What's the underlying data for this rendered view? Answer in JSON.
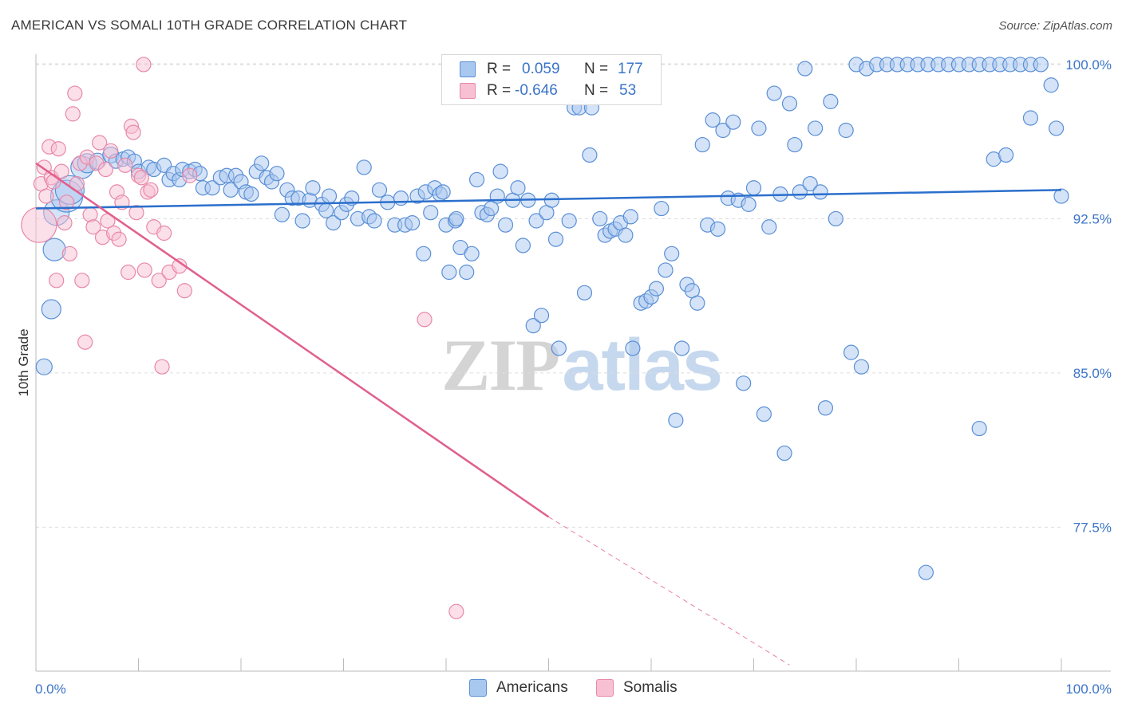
{
  "chart_data": {
    "type": "scatter",
    "title": "AMERICAN VS SOMALI 10TH GRADE CORRELATION CHART",
    "source": "Source: ZipAtlas.com",
    "xlabel": "",
    "ylabel": "10th Grade",
    "xlim": [
      0,
      100
    ],
    "ylim": [
      70.5,
      101.2
    ],
    "x_tick_labels": {
      "left": "0.0%",
      "right": "100.0%"
    },
    "y_ticks": [
      {
        "value": 100.0,
        "label": "100.0%"
      },
      {
        "value": 92.5,
        "label": "92.5%"
      },
      {
        "value": 85.0,
        "label": "85.0%"
      },
      {
        "value": 77.5,
        "label": "77.5%"
      }
    ],
    "grid": "horizontal dashed",
    "colors": {
      "americans_fill": "#a9c8ef",
      "americans_stroke": "#5a8fd6",
      "americans_line": "#2b6fcc",
      "somalis_fill": "#f7c0d3",
      "somalis_stroke": "#e888a8",
      "somalis_line": "#e0608e",
      "accent_text": "#3b74c8"
    },
    "legend": {
      "rows": [
        {
          "r_label": "R = ",
          "r_value": "0.059",
          "n_label": "N = ",
          "n_value": "177"
        },
        {
          "r_label": "R = ",
          "r_value": "-0.646",
          "n_label": "N = ",
          "n_value": "53"
        }
      ]
    },
    "bottom_legend": [
      "Americans",
      "Somalis"
    ],
    "watermark": {
      "zip": "ZIP",
      "atlas": "atlas"
    },
    "series": [
      {
        "name": "Americans",
        "trend": {
          "x": [
            0,
            100
          ],
          "y": [
            93.0,
            93.9
          ]
        },
        "points": [
          [
            0.8,
            85.3,
            10
          ],
          [
            1.5,
            88.1,
            12
          ],
          [
            1.8,
            91.0,
            14
          ],
          [
            2.0,
            92.8,
            16
          ],
          [
            3.0,
            93.6,
            20
          ],
          [
            3.3,
            93.9,
            18
          ],
          [
            4.5,
            95.0,
            14
          ],
          [
            5.0,
            95.2,
            12
          ],
          [
            6.0,
            95.3,
            10
          ],
          [
            7.3,
            95.6,
            10
          ],
          [
            7.8,
            95.3,
            9
          ],
          [
            8.5,
            95.4,
            9
          ],
          [
            9.0,
            95.5,
            9
          ],
          [
            9.6,
            95.3,
            9
          ],
          [
            10.0,
            94.8,
            9
          ],
          [
            11.0,
            95.0,
            9
          ],
          [
            11.5,
            94.9,
            9
          ],
          [
            12.5,
            95.1,
            9
          ],
          [
            13.0,
            94.4,
            9
          ],
          [
            13.4,
            94.7,
            9
          ],
          [
            14.0,
            94.4,
            9
          ],
          [
            14.3,
            94.9,
            9
          ],
          [
            15.0,
            94.8,
            9
          ],
          [
            15.5,
            94.9,
            9
          ],
          [
            16.0,
            94.7,
            9
          ],
          [
            16.3,
            94.0,
            9
          ],
          [
            17.2,
            94.0,
            9
          ],
          [
            18.0,
            94.5,
            9
          ],
          [
            18.6,
            94.6,
            9
          ],
          [
            19.0,
            93.9,
            9
          ],
          [
            19.5,
            94.6,
            9
          ],
          [
            20.0,
            94.3,
            9
          ],
          [
            20.5,
            93.8,
            9
          ],
          [
            21.0,
            93.7,
            9
          ],
          [
            21.5,
            94.8,
            9
          ],
          [
            22.0,
            95.2,
            9
          ],
          [
            22.5,
            94.5,
            9
          ],
          [
            23.0,
            94.3,
            9
          ],
          [
            23.5,
            94.7,
            9
          ],
          [
            24.0,
            92.7,
            9
          ],
          [
            24.5,
            93.9,
            9
          ],
          [
            25.0,
            93.5,
            9
          ],
          [
            25.6,
            93.5,
            9
          ],
          [
            26.0,
            92.4,
            9
          ],
          [
            26.7,
            93.4,
            9
          ],
          [
            27.0,
            94.0,
            9
          ],
          [
            27.9,
            93.2,
            9
          ],
          [
            28.3,
            92.9,
            9
          ],
          [
            28.6,
            93.6,
            9
          ],
          [
            29.0,
            92.3,
            9
          ],
          [
            29.8,
            92.8,
            9
          ],
          [
            30.3,
            93.2,
            9
          ],
          [
            30.8,
            93.5,
            9
          ],
          [
            31.4,
            92.5,
            9
          ],
          [
            32.0,
            95.0,
            9
          ],
          [
            32.5,
            92.6,
            9
          ],
          [
            33.0,
            92.4,
            9
          ],
          [
            33.5,
            93.9,
            9
          ],
          [
            34.3,
            93.3,
            9
          ],
          [
            35.0,
            92.2,
            9
          ],
          [
            35.6,
            93.5,
            9
          ],
          [
            36.0,
            92.2,
            9
          ],
          [
            36.7,
            92.3,
            9
          ],
          [
            37.2,
            93.6,
            9
          ],
          [
            37.8,
            90.8,
            9
          ],
          [
            38.0,
            93.8,
            9
          ],
          [
            38.5,
            92.8,
            9
          ],
          [
            38.9,
            94.0,
            9
          ],
          [
            39.4,
            93.7,
            9
          ],
          [
            39.7,
            93.8,
            9
          ],
          [
            40.0,
            92.2,
            9
          ],
          [
            40.3,
            89.9,
            9
          ],
          [
            40.9,
            92.4,
            9
          ],
          [
            41.0,
            92.5,
            9
          ],
          [
            41.4,
            91.1,
            9
          ],
          [
            42.0,
            89.9,
            9
          ],
          [
            42.5,
            90.8,
            9
          ],
          [
            43.0,
            94.4,
            9
          ],
          [
            43.5,
            92.8,
            9
          ],
          [
            44.0,
            92.7,
            9
          ],
          [
            44.4,
            93.0,
            9
          ],
          [
            45.0,
            93.6,
            9
          ],
          [
            45.3,
            94.8,
            9
          ],
          [
            45.8,
            92.2,
            9
          ],
          [
            46.5,
            93.4,
            9
          ],
          [
            47.0,
            94.0,
            9
          ],
          [
            47.5,
            91.2,
            9
          ],
          [
            48.0,
            93.4,
            9
          ],
          [
            48.5,
            87.3,
            9
          ],
          [
            48.8,
            92.4,
            9
          ],
          [
            49.3,
            87.8,
            9
          ],
          [
            49.8,
            92.8,
            9
          ],
          [
            50.3,
            93.4,
            9
          ],
          [
            50.7,
            91.5,
            9
          ],
          [
            51.0,
            86.2,
            9
          ],
          [
            52.0,
            92.4,
            9
          ],
          [
            52.5,
            97.9,
            9
          ],
          [
            53.0,
            97.9,
            9
          ],
          [
            53.5,
            88.9,
            9
          ],
          [
            54.0,
            95.6,
            9
          ],
          [
            54.2,
            97.9,
            9
          ],
          [
            55.0,
            92.5,
            9
          ],
          [
            55.5,
            91.7,
            9
          ],
          [
            56.0,
            91.9,
            9
          ],
          [
            56.5,
            92.0,
            9
          ],
          [
            57.0,
            92.3,
            9
          ],
          [
            57.5,
            91.7,
            9
          ],
          [
            58.0,
            92.6,
            9
          ],
          [
            58.2,
            86.2,
            9
          ],
          [
            59.0,
            88.4,
            9
          ],
          [
            59.5,
            88.5,
            9
          ],
          [
            60.0,
            88.7,
            9
          ],
          [
            60.5,
            89.1,
            9
          ],
          [
            61.0,
            93.0,
            9
          ],
          [
            61.4,
            90.0,
            9
          ],
          [
            62.0,
            90.8,
            9
          ],
          [
            62.4,
            82.7,
            9
          ],
          [
            63.0,
            86.2,
            9
          ],
          [
            63.5,
            89.3,
            9
          ],
          [
            64.0,
            89.0,
            9
          ],
          [
            64.5,
            88.4,
            9
          ],
          [
            65.0,
            96.1,
            9
          ],
          [
            65.5,
            92.2,
            9
          ],
          [
            66.0,
            97.3,
            9
          ],
          [
            66.5,
            92.0,
            9
          ],
          [
            67.0,
            96.8,
            9
          ],
          [
            67.5,
            93.5,
            9
          ],
          [
            68.0,
            97.2,
            9
          ],
          [
            68.5,
            93.4,
            9
          ],
          [
            69.0,
            84.5,
            9
          ],
          [
            69.5,
            93.2,
            9
          ],
          [
            70.0,
            94.0,
            9
          ],
          [
            70.5,
            96.9,
            9
          ],
          [
            71.0,
            83.0,
            9
          ],
          [
            71.5,
            92.1,
            9
          ],
          [
            72.0,
            98.6,
            9
          ],
          [
            72.6,
            93.7,
            9
          ],
          [
            73.0,
            81.1,
            9
          ],
          [
            73.5,
            98.1,
            9
          ],
          [
            74.0,
            96.1,
            9
          ],
          [
            74.5,
            93.8,
            9
          ],
          [
            75.0,
            99.8,
            9
          ],
          [
            75.5,
            94.2,
            9
          ],
          [
            76.0,
            96.9,
            9
          ],
          [
            76.5,
            93.8,
            9
          ],
          [
            77.0,
            83.3,
            9
          ],
          [
            77.5,
            98.2,
            9
          ],
          [
            78.0,
            92.5,
            9
          ],
          [
            79.0,
            96.8,
            9
          ],
          [
            79.5,
            86.0,
            9
          ],
          [
            80.0,
            100.0,
            9
          ],
          [
            80.5,
            85.3,
            9
          ],
          [
            81.0,
            99.8,
            9
          ],
          [
            82.0,
            100.0,
            9
          ],
          [
            83.0,
            100.0,
            9
          ],
          [
            84.0,
            100.0,
            9
          ],
          [
            85.0,
            100.0,
            9
          ],
          [
            86.0,
            100.0,
            9
          ],
          [
            87.0,
            100.0,
            9
          ],
          [
            88.0,
            100.0,
            9
          ],
          [
            89.0,
            100.0,
            9
          ],
          [
            90.0,
            100.0,
            9
          ],
          [
            91.0,
            100.0,
            9
          ],
          [
            92.0,
            100.0,
            9
          ],
          [
            93.0,
            100.0,
            9
          ],
          [
            94.0,
            100.0,
            9
          ],
          [
            95.0,
            100.0,
            9
          ],
          [
            96.0,
            100.0,
            9
          ],
          [
            97.0,
            100.0,
            9
          ],
          [
            98.0,
            100.0,
            9
          ],
          [
            99.0,
            99.0,
            9
          ],
          [
            99.5,
            96.9,
            9
          ],
          [
            100.0,
            93.6,
            9
          ],
          [
            86.8,
            75.3,
            9
          ],
          [
            92.0,
            82.3,
            9
          ],
          [
            93.4,
            95.4,
            9
          ],
          [
            94.6,
            95.6,
            9
          ],
          [
            97.0,
            97.4,
            9
          ]
        ]
      },
      {
        "name": "Somalis",
        "trend": {
          "x": [
            0,
            50
          ],
          "y": [
            95.2,
            78.0
          ]
        },
        "trend_dashed": {
          "x": [
            50,
            73.5
          ],
          "y": [
            78.0,
            70.8
          ]
        },
        "points": [
          [
            0.3,
            92.2,
            22
          ],
          [
            0.5,
            94.2,
            9
          ],
          [
            0.8,
            95.0,
            9
          ],
          [
            1.0,
            93.6,
            9
          ],
          [
            1.3,
            96.0,
            9
          ],
          [
            1.5,
            94.5,
            9
          ],
          [
            1.7,
            94.3,
            9
          ],
          [
            2.0,
            89.5,
            9
          ],
          [
            2.2,
            95.9,
            9
          ],
          [
            2.5,
            94.8,
            9
          ],
          [
            2.8,
            92.3,
            9
          ],
          [
            3.0,
            93.3,
            9
          ],
          [
            3.3,
            90.8,
            9
          ],
          [
            3.6,
            97.6,
            9
          ],
          [
            3.8,
            98.6,
            9
          ],
          [
            4.0,
            94.2,
            9
          ],
          [
            4.3,
            95.2,
            9
          ],
          [
            4.5,
            89.5,
            9
          ],
          [
            4.8,
            86.5,
            9
          ],
          [
            5.0,
            95.5,
            9
          ],
          [
            5.3,
            92.7,
            9
          ],
          [
            5.6,
            92.1,
            9
          ],
          [
            5.9,
            95.2,
            9
          ],
          [
            6.2,
            96.2,
            9
          ],
          [
            6.5,
            91.6,
            9
          ],
          [
            6.8,
            94.9,
            9
          ],
          [
            7.0,
            92.4,
            9
          ],
          [
            7.3,
            95.8,
            9
          ],
          [
            7.6,
            91.8,
            9
          ],
          [
            7.9,
            93.8,
            9
          ],
          [
            8.1,
            91.5,
            9
          ],
          [
            8.4,
            93.3,
            9
          ],
          [
            8.7,
            95.1,
            9
          ],
          [
            9.0,
            89.9,
            9
          ],
          [
            9.3,
            97.0,
            9
          ],
          [
            9.5,
            96.7,
            9
          ],
          [
            9.8,
            92.8,
            9
          ],
          [
            10.0,
            94.6,
            9
          ],
          [
            10.3,
            94.5,
            9
          ],
          [
            10.6,
            90.0,
            9
          ],
          [
            10.9,
            93.8,
            9
          ],
          [
            11.2,
            93.9,
            9
          ],
          [
            11.5,
            92.1,
            9
          ],
          [
            12.0,
            89.5,
            9
          ],
          [
            12.3,
            85.3,
            9
          ],
          [
            12.5,
            91.8,
            9
          ],
          [
            13.0,
            89.9,
            9
          ],
          [
            14.0,
            90.2,
            9
          ],
          [
            10.5,
            100.0,
            9
          ],
          [
            37.9,
            87.6,
            9
          ],
          [
            41.0,
            73.4,
            9
          ],
          [
            15.0,
            94.6,
            9
          ],
          [
            14.5,
            89.0,
            9
          ]
        ]
      }
    ]
  }
}
